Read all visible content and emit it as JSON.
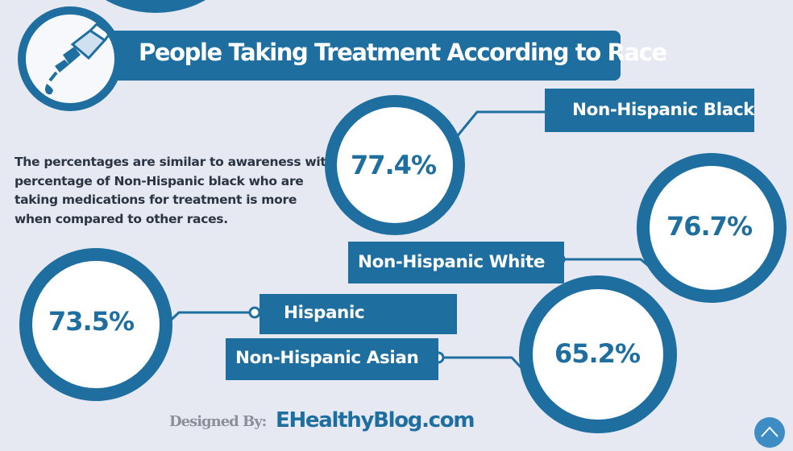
{
  "title": "People Taking Treatment According to Race",
  "description": "The percentages are similar to awareness with percentage of Non-Hispanic black who are taking medications for treatment is more when compared to other races.",
  "stats": [
    {
      "label": "Non-Hispanic Black",
      "value": "77.4%"
    },
    {
      "label": "Non-Hispanic White",
      "value": "76.7%"
    },
    {
      "label": "Hispanic",
      "value": "73.5%"
    },
    {
      "label": "Non-Hispanic Asian",
      "value": "65.2%"
    }
  ],
  "footer": {
    "designed_by": "Designed By:",
    "site": "EHealthyBlog.com"
  },
  "icons": {
    "header": "medicine-bottle-dropper-icon",
    "scroll": "chevron-up-icon"
  },
  "colors": {
    "accent": "#1e6fa0",
    "background": "#e6e9f2",
    "text": "#2a3442",
    "muted": "#8a8f99"
  }
}
